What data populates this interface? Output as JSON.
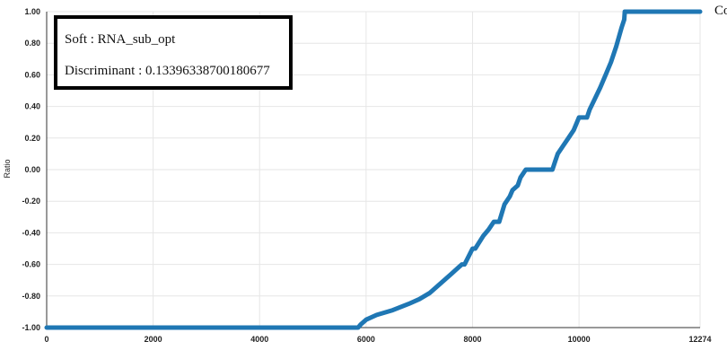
{
  "info_box": {
    "soft": "Soft : RNA_sub_opt",
    "discriminant": "Discriminant : 0.13396338700180677"
  },
  "legend_label": "Co",
  "series_color": "#1f77b4",
  "chart_data": {
    "type": "line",
    "ylabel": "Ratio",
    "xlabel": "",
    "xlim": [
      0,
      12274
    ],
    "ylim": [
      -1,
      1
    ],
    "x_ticks": [
      0,
      2000,
      4000,
      6000,
      8000,
      10000,
      12274
    ],
    "y_ticks": [
      -1.0,
      -0.8,
      -0.6,
      -0.4,
      -0.2,
      0.0,
      0.2,
      0.4,
      0.6,
      0.8,
      1.0
    ],
    "x_tick_labels": [
      "0",
      "2000",
      "4000",
      "6000",
      "8000",
      "10000",
      "12274"
    ],
    "y_tick_labels": [
      "-1.00",
      "-0.80",
      "-0.60",
      "-0.40",
      "-0.20",
      "0.00",
      "0.20",
      "0.40",
      "0.60",
      "0.80",
      "1.00"
    ],
    "series": [
      {
        "x": [
          0,
          5850,
          5900,
          6000,
          6200,
          6500,
          6800,
          7000,
          7200,
          7400,
          7600,
          7800,
          7850,
          8000,
          8050,
          8200,
          8300,
          8400,
          8500,
          8600,
          8700,
          8750,
          8850,
          8900,
          9000,
          9100,
          9200,
          9500,
          9550,
          9600,
          9700,
          9800,
          9900,
          10000,
          10050,
          10150,
          10200,
          10300,
          10400,
          10500,
          10600,
          10700,
          10800,
          10850,
          10860,
          12274
        ],
        "y": [
          -1.0,
          -1.0,
          -0.98,
          -0.95,
          -0.92,
          -0.89,
          -0.85,
          -0.82,
          -0.78,
          -0.72,
          -0.66,
          -0.6,
          -0.6,
          -0.5,
          -0.5,
          -0.42,
          -0.38,
          -0.33,
          -0.33,
          -0.22,
          -0.17,
          -0.13,
          -0.1,
          -0.05,
          0.0,
          0.0,
          0.0,
          0.0,
          0.05,
          0.1,
          0.15,
          0.2,
          0.25,
          0.33,
          0.33,
          0.33,
          0.38,
          0.45,
          0.52,
          0.6,
          0.68,
          0.78,
          0.9,
          0.95,
          1.0,
          1.0
        ]
      }
    ]
  }
}
